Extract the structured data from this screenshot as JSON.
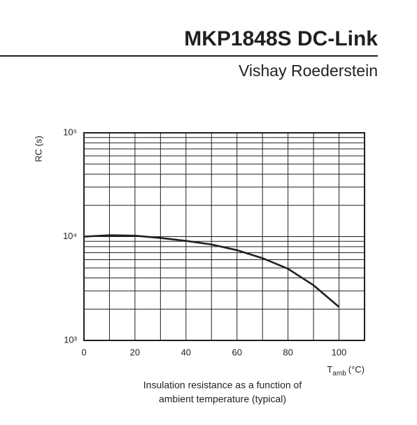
{
  "header": {
    "title": "MKP1848S DC-Link",
    "subtitle": "Vishay Roederstein"
  },
  "chart_data": {
    "type": "line",
    "ylabel": "RC (s)",
    "xlabel": {
      "symbol": "T",
      "subscript": "amb",
      "unit": "(°C)"
    },
    "caption": [
      "Insulation resistance as a function of",
      "ambient temperature (typical)"
    ],
    "x": [
      0,
      10,
      20,
      30,
      40,
      50,
      60,
      70,
      80,
      90,
      100
    ],
    "series": [
      {
        "color": "#231f20",
        "values": [
          10000,
          10300,
          10200,
          9700,
          9100,
          8400,
          7400,
          6200,
          4900,
          3400,
          2100
        ]
      }
    ],
    "xlim": [
      0,
      110
    ],
    "xticks": [
      0,
      20,
      40,
      60,
      80,
      100
    ],
    "xminorticks": [
      10,
      30,
      50,
      70,
      90,
      110
    ],
    "ylim": [
      1000,
      100000
    ],
    "ylog": true,
    "yticks": [
      {
        "value": 1000,
        "label": "10³"
      },
      {
        "value": 10000,
        "label": "10⁴"
      },
      {
        "value": 100000,
        "label": "10⁵"
      }
    ],
    "yminorticks": [
      2000,
      3000,
      4000,
      5000,
      6000,
      7000,
      8000,
      9000,
      20000,
      30000,
      40000,
      50000,
      60000,
      70000,
      80000,
      90000
    ],
    "grid": true
  }
}
